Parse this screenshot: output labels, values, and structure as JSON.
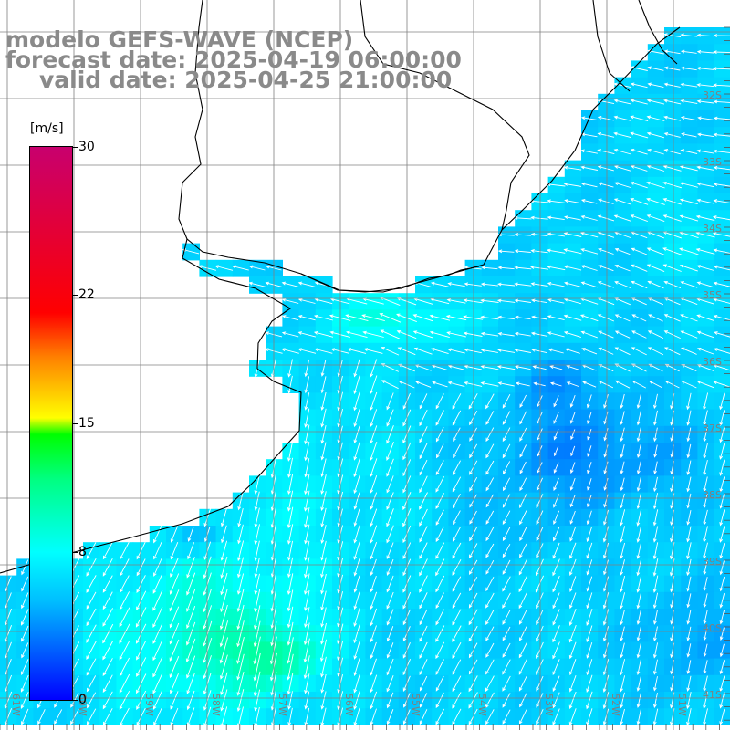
{
  "title": {
    "line1": "modelo GEFS-WAVE (NCEP)",
    "line2": "forecast date: 2025-04-19 06:00:00",
    "line3": "valid date: 2025-04-25 21:00:00"
  },
  "colorbar": {
    "unit": "[m/s]",
    "ticks": [
      "30",
      "22",
      "15",
      "8",
      "0"
    ],
    "tick_values": [
      30,
      22,
      15,
      8,
      0
    ],
    "min": 0,
    "max": 30
  },
  "latitude_labels": [
    "32S",
    "33S",
    "34S",
    "35S",
    "36S",
    "37S",
    "38S",
    "39S",
    "40S",
    "41S"
  ],
  "longitude_labels": [
    "61W",
    "60W",
    "59W",
    "58W",
    "57W",
    "56W",
    "55W",
    "54W",
    "53W",
    "52W",
    "51W"
  ],
  "colors": {
    "land": "#ffffff",
    "grid": "#808080",
    "coast": "#000000",
    "label": "#8a8a8a",
    "arrows": "#ffffff"
  }
}
